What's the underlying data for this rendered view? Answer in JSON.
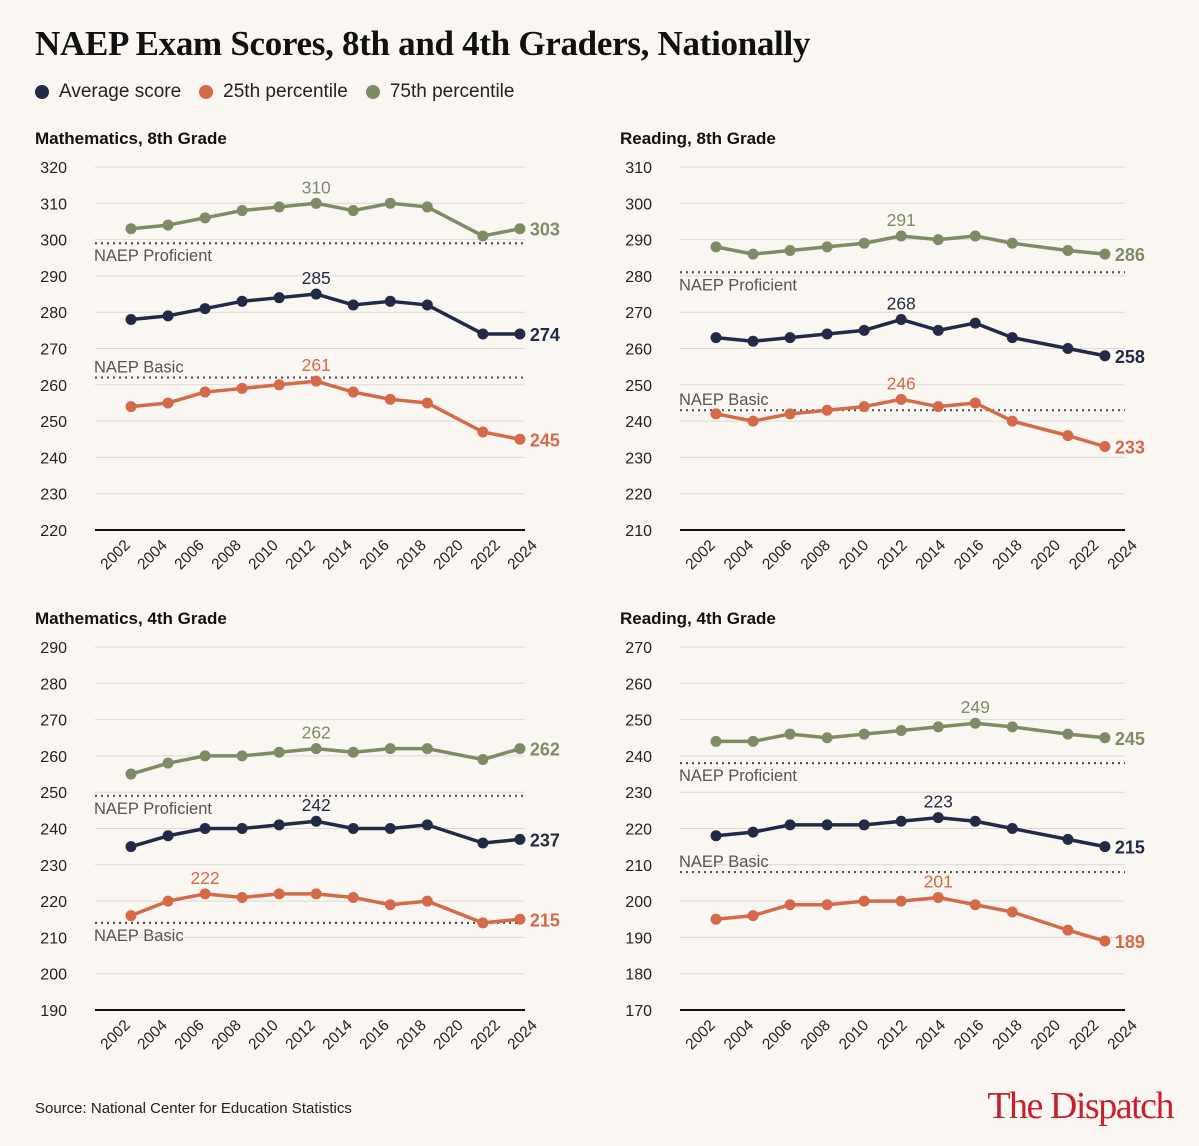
{
  "title": "NAEP Exam Scores, 8th and 4th Graders, Nationally",
  "legend": [
    {
      "label": "Average score",
      "color": "#232a45"
    },
    {
      "label": "25th percentile",
      "color": "#d46a4a"
    },
    {
      "label": "75th percentile",
      "color": "#7f8b66"
    }
  ],
  "source": "Source: National Center for Education Statistics",
  "logo": "The Dispatch",
  "chart_data": [
    {
      "type": "line",
      "title": "Mathematics, 8th Grade",
      "x": [
        2003,
        2005,
        2007,
        2009,
        2011,
        2013,
        2015,
        2017,
        2019,
        2022,
        2024
      ],
      "x_ticks": [
        "2002",
        "2004",
        "2006",
        "2008",
        "2010",
        "2012",
        "2014",
        "2016",
        "2018",
        "2020",
        "2022",
        "2024"
      ],
      "ylim": [
        220,
        320
      ],
      "y_ticks": [
        220,
        230,
        240,
        250,
        260,
        270,
        280,
        290,
        300,
        310,
        320
      ],
      "grid": true,
      "series": [
        {
          "name": "75th percentile",
          "color": "#7f8b66",
          "values": [
            303,
            304,
            306,
            308,
            309,
            310,
            308,
            310,
            309,
            301,
            303
          ],
          "peak_label": "310",
          "end_label": "303"
        },
        {
          "name": "Average score",
          "color": "#232a45",
          "values": [
            278,
            279,
            281,
            283,
            284,
            285,
            282,
            283,
            282,
            274,
            274
          ],
          "peak_label": "285",
          "end_label": "274"
        },
        {
          "name": "25th percentile",
          "color": "#d46a4a",
          "values": [
            254,
            255,
            258,
            259,
            260,
            261,
            258,
            256,
            255,
            247,
            245
          ],
          "peak_label": "261",
          "end_label": "245"
        }
      ],
      "reference_lines": [
        {
          "label": "NAEP Proficient",
          "value": 299,
          "label_position": "below"
        },
        {
          "label": "NAEP Basic",
          "value": 262,
          "label_position": "above"
        }
      ]
    },
    {
      "type": "line",
      "title": "Reading, 8th Grade",
      "x": [
        2003,
        2005,
        2007,
        2009,
        2011,
        2013,
        2015,
        2017,
        2019,
        2022,
        2024
      ],
      "x_ticks": [
        "2002",
        "2004",
        "2006",
        "2008",
        "2010",
        "2012",
        "2014",
        "2016",
        "2018",
        "2020",
        "2022",
        "2024"
      ],
      "ylim": [
        210,
        310
      ],
      "y_ticks": [
        210,
        220,
        230,
        240,
        250,
        260,
        270,
        280,
        290,
        300,
        310
      ],
      "grid": true,
      "series": [
        {
          "name": "75th percentile",
          "color": "#7f8b66",
          "values": [
            288,
            286,
            287,
            288,
            289,
            291,
            290,
            291,
            289,
            287,
            286
          ],
          "peak_label": "291",
          "end_label": "286"
        },
        {
          "name": "Average score",
          "color": "#232a45",
          "values": [
            263,
            262,
            263,
            264,
            265,
            268,
            265,
            267,
            263,
            260,
            258
          ],
          "peak_label": "268",
          "end_label": "258"
        },
        {
          "name": "25th percentile",
          "color": "#d46a4a",
          "values": [
            242,
            240,
            242,
            243,
            244,
            246,
            244,
            245,
            240,
            236,
            233
          ],
          "peak_label": "246",
          "end_label": "233"
        }
      ],
      "reference_lines": [
        {
          "label": "NAEP Proficient",
          "value": 281,
          "label_position": "below"
        },
        {
          "label": "NAEP Basic",
          "value": 243,
          "label_position": "above"
        }
      ]
    },
    {
      "type": "line",
      "title": "Mathematics, 4th Grade",
      "x": [
        2003,
        2005,
        2007,
        2009,
        2011,
        2013,
        2015,
        2017,
        2019,
        2022,
        2024
      ],
      "x_ticks": [
        "2002",
        "2004",
        "2006",
        "2008",
        "2010",
        "2012",
        "2014",
        "2016",
        "2018",
        "2020",
        "2022",
        "2024"
      ],
      "ylim": [
        190,
        290
      ],
      "y_ticks": [
        190,
        200,
        210,
        220,
        230,
        240,
        250,
        260,
        270,
        280,
        290
      ],
      "grid": true,
      "series": [
        {
          "name": "75th percentile",
          "color": "#7f8b66",
          "values": [
            255,
            258,
            260,
            260,
            261,
            262,
            261,
            262,
            262,
            259,
            262
          ],
          "peak_label": "262",
          "end_label": "262"
        },
        {
          "name": "Average score",
          "color": "#232a45",
          "values": [
            235,
            238,
            240,
            240,
            241,
            242,
            240,
            240,
            241,
            236,
            237
          ],
          "peak_label": "242",
          "end_label": "237"
        },
        {
          "name": "25th percentile",
          "color": "#d46a4a",
          "values": [
            216,
            220,
            222,
            221,
            222,
            222,
            221,
            219,
            220,
            214,
            215
          ],
          "peak_label": "222",
          "end_label": "215"
        }
      ],
      "reference_lines": [
        {
          "label": "NAEP Proficient",
          "value": 249,
          "label_position": "below"
        },
        {
          "label": "NAEP Basic",
          "value": 214,
          "label_position": "below"
        }
      ]
    },
    {
      "type": "line",
      "title": "Reading, 4th Grade",
      "x": [
        2003,
        2005,
        2007,
        2009,
        2011,
        2013,
        2015,
        2017,
        2019,
        2022,
        2024
      ],
      "x_ticks": [
        "2002",
        "2004",
        "2006",
        "2008",
        "2010",
        "2012",
        "2014",
        "2016",
        "2018",
        "2020",
        "2022",
        "2024"
      ],
      "ylim": [
        170,
        270
      ],
      "y_ticks": [
        170,
        180,
        190,
        200,
        210,
        220,
        230,
        240,
        250,
        260,
        270
      ],
      "grid": true,
      "series": [
        {
          "name": "75th percentile",
          "color": "#7f8b66",
          "values": [
            244,
            244,
            246,
            245,
            246,
            247,
            248,
            249,
            248,
            246,
            245
          ],
          "peak_label": "249",
          "end_label": "245"
        },
        {
          "name": "Average score",
          "color": "#232a45",
          "values": [
            218,
            219,
            221,
            221,
            221,
            222,
            223,
            222,
            220,
            217,
            215
          ],
          "peak_label": "223",
          "end_label": "215"
        },
        {
          "name": "25th percentile",
          "color": "#d46a4a",
          "values": [
            195,
            196,
            199,
            199,
            200,
            200,
            201,
            199,
            197,
            192,
            189
          ],
          "peak_label": "201",
          "end_label": "189"
        }
      ],
      "reference_lines": [
        {
          "label": "NAEP Proficient",
          "value": 238,
          "label_position": "below"
        },
        {
          "label": "NAEP Basic",
          "value": 208,
          "label_position": "above"
        }
      ]
    }
  ]
}
